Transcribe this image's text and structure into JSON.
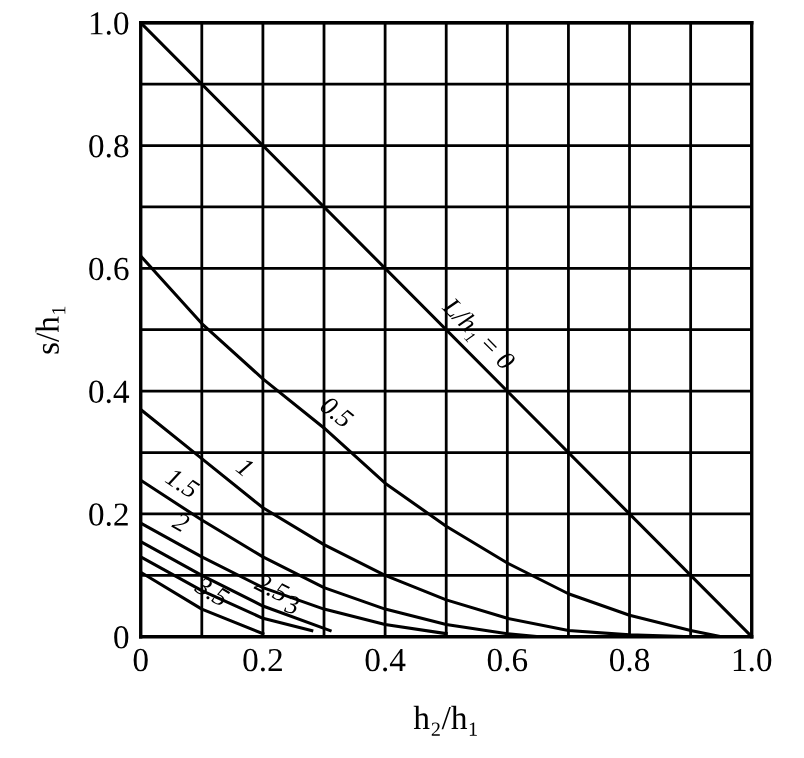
{
  "chart_data": {
    "type": "line",
    "xlabel": "h₂/h₁",
    "ylabel": "s/h₁",
    "xlim": [
      0,
      1.0
    ],
    "ylim": [
      0,
      1.0
    ],
    "xticks": [
      0,
      {
        "value": 0.1,
        "label": null
      },
      0.2,
      {
        "value": 0.3,
        "label": null
      },
      0.4,
      {
        "value": 0.5,
        "label": null
      },
      0.6,
      {
        "value": 0.7,
        "label": null
      },
      0.8,
      {
        "value": 0.9,
        "label": null
      },
      {
        "value": 1.0,
        "label": "1.0"
      }
    ],
    "yticks": [
      0,
      {
        "value": 0.1,
        "label": null
      },
      0.2,
      {
        "value": 0.3,
        "label": null
      },
      0.4,
      {
        "value": 0.5,
        "label": null
      },
      0.6,
      {
        "value": 0.7,
        "label": null
      },
      0.8,
      {
        "value": 0.9,
        "label": null
      },
      {
        "value": 1.0,
        "label": "1.0"
      }
    ],
    "grid": true,
    "marker": "none",
    "line_style": "solid",
    "series": [
      {
        "color": "#000000",
        "x": [
          0,
          1.0
        ],
        "values": [
          1.0,
          0
        ]
      },
      {
        "color": "#000000",
        "x": [
          0,
          0.1,
          0.2,
          0.3,
          0.4,
          0.5,
          0.6,
          0.7,
          0.8,
          0.9,
          0.95
        ],
        "values": [
          0.62,
          0.51,
          0.42,
          0.34,
          0.25,
          0.18,
          0.12,
          0.07,
          0.035,
          0.01,
          0
        ]
      },
      {
        "color": "#000000",
        "x": [
          0,
          0.1,
          0.2,
          0.3,
          0.4,
          0.5,
          0.6,
          0.7,
          0.8,
          0.9
        ],
        "values": [
          0.37,
          0.29,
          0.21,
          0.15,
          0.1,
          0.06,
          0.03,
          0.01,
          0.003,
          0
        ]
      },
      {
        "color": "#000000",
        "x": [
          0,
          0.1,
          0.2,
          0.3,
          0.4,
          0.5,
          0.6,
          0.65
        ],
        "values": [
          0.255,
          0.19,
          0.13,
          0.08,
          0.045,
          0.02,
          0.005,
          0
        ]
      },
      {
        "color": "#000000",
        "x": [
          0,
          0.1,
          0.2,
          0.3,
          0.4,
          0.5
        ],
        "values": [
          0.185,
          0.13,
          0.08,
          0.045,
          0.02,
          0.005
        ]
      },
      {
        "color": "#000000",
        "x": [
          0,
          0.1,
          0.2,
          0.31
        ],
        "values": [
          0.155,
          0.1,
          0.05,
          0.01
        ]
      },
      {
        "color": "#000000",
        "x": [
          0,
          0.1,
          0.2,
          0.28
        ],
        "values": [
          0.13,
          0.075,
          0.03,
          0.01
        ]
      },
      {
        "color": "#000000",
        "x": [
          0,
          0.1,
          0.2
        ],
        "values": [
          0.105,
          0.045,
          0.005
        ]
      }
    ],
    "annotations": [
      {
        "text": "L/h₁ = 0",
        "x": 0.53,
        "y": 0.47
      },
      {
        "text": "0.5",
        "x": 0.3,
        "y": 0.34
      },
      {
        "text": "1",
        "x": 0.15,
        "y": 0.25
      },
      {
        "text": "1.5",
        "x": 0.05,
        "y": 0.2225
      },
      {
        "text": "2",
        "x": 0.05,
        "y": 0.1575
      },
      {
        "text": "2.5",
        "x": 0.2,
        "y": 0.05
      },
      {
        "text": "3",
        "x": 0.24,
        "y": 0.02
      },
      {
        "text": "3.5",
        "x": 0.1,
        "y": 0.045
      }
    ]
  }
}
